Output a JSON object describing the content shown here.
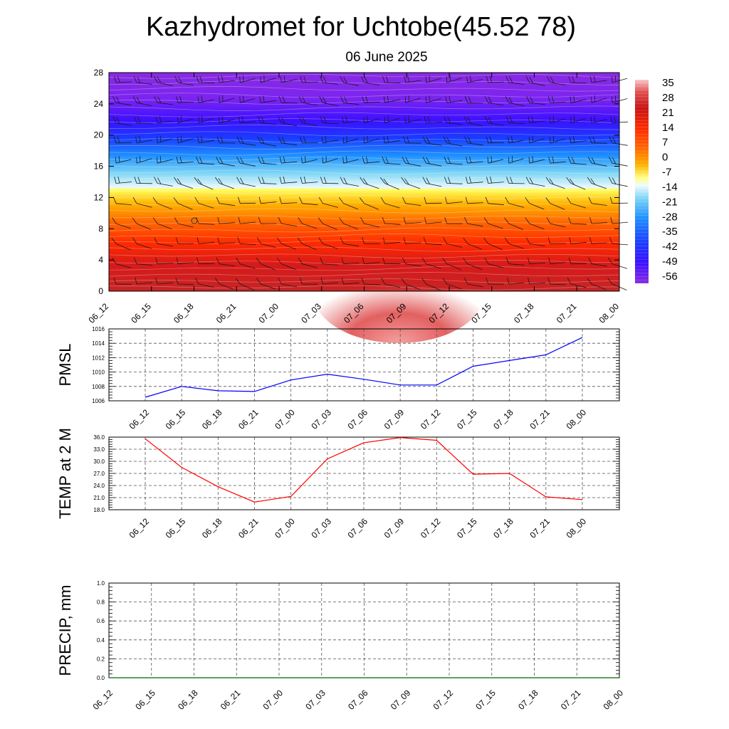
{
  "title": "Kazhydromet for Uchtobe(45.52 78)",
  "subtitle": "06 June 2025",
  "time_labels": [
    "06_12",
    "06_15",
    "06_18",
    "06_21",
    "07_00",
    "07_03",
    "07_06",
    "07_09",
    "07_12",
    "07_15",
    "07_18",
    "07_21",
    "08_00"
  ],
  "chart_data": [
    {
      "type": "heatmap",
      "name": "temperature-profile",
      "y_ticks": [
        0,
        4,
        8,
        12,
        16,
        20,
        24,
        28
      ],
      "ylim": [
        0,
        28
      ],
      "colorbar": {
        "labels": [
          35,
          28,
          21,
          14,
          7,
          0,
          -7,
          -14,
          -21,
          -28,
          -35,
          -42,
          -49,
          -56
        ],
        "range": [
          -63,
          42
        ]
      },
      "wind_barbs": true,
      "grid": false
    },
    {
      "type": "line",
      "ylabel": "PMSL",
      "ylim": [
        1006,
        1016
      ],
      "y_ticks": [
        "1006",
        "1008",
        "1010",
        "1012",
        "1014",
        "1016"
      ],
      "color": "#0000ff",
      "x": [
        "06_12",
        "06_15",
        "06_18",
        "06_21",
        "07_00",
        "07_03",
        "07_06",
        "07_09",
        "07_12",
        "07_15",
        "07_18",
        "07_21",
        "08_00"
      ],
      "values": [
        1006.5,
        1008.0,
        1007.4,
        1007.3,
        1008.9,
        1009.7,
        1009.0,
        1008.2,
        1008.2,
        1010.8,
        1011.6,
        1012.4,
        1014.8
      ],
      "grid": true
    },
    {
      "type": "line",
      "ylabel": "TEMP at 2 M",
      "ylim": [
        18,
        36
      ],
      "y_ticks": [
        "18.0",
        "21.0",
        "24.0",
        "27.0",
        "30.0",
        "33.0",
        "36.0"
      ],
      "color": "#ff0000",
      "x": [
        "06_12",
        "06_15",
        "06_18",
        "06_21",
        "07_00",
        "07_03",
        "07_06",
        "07_09",
        "07_12",
        "07_15",
        "07_18",
        "07_21",
        "08_00"
      ],
      "values": [
        35.6,
        28.5,
        23.7,
        19.9,
        21.3,
        30.6,
        34.6,
        35.9,
        35.2,
        26.8,
        27.0,
        21.2,
        20.5
      ],
      "grid": true
    },
    {
      "type": "line",
      "ylabel": "PRECIP, mm",
      "ylim": [
        0,
        1
      ],
      "y_ticks": [
        "0.0",
        "0.2",
        "0.4",
        "0.6",
        "0.8",
        "1.0"
      ],
      "color": "#006400",
      "x": [
        "06_12",
        "06_15",
        "06_18",
        "06_21",
        "07_00",
        "07_03",
        "07_06",
        "07_09",
        "07_12",
        "07_15",
        "07_18",
        "07_21",
        "08_00"
      ],
      "values": [
        0,
        0,
        0,
        0,
        0,
        0,
        0,
        0,
        0,
        0,
        0,
        0,
        0
      ],
      "grid": true
    }
  ]
}
